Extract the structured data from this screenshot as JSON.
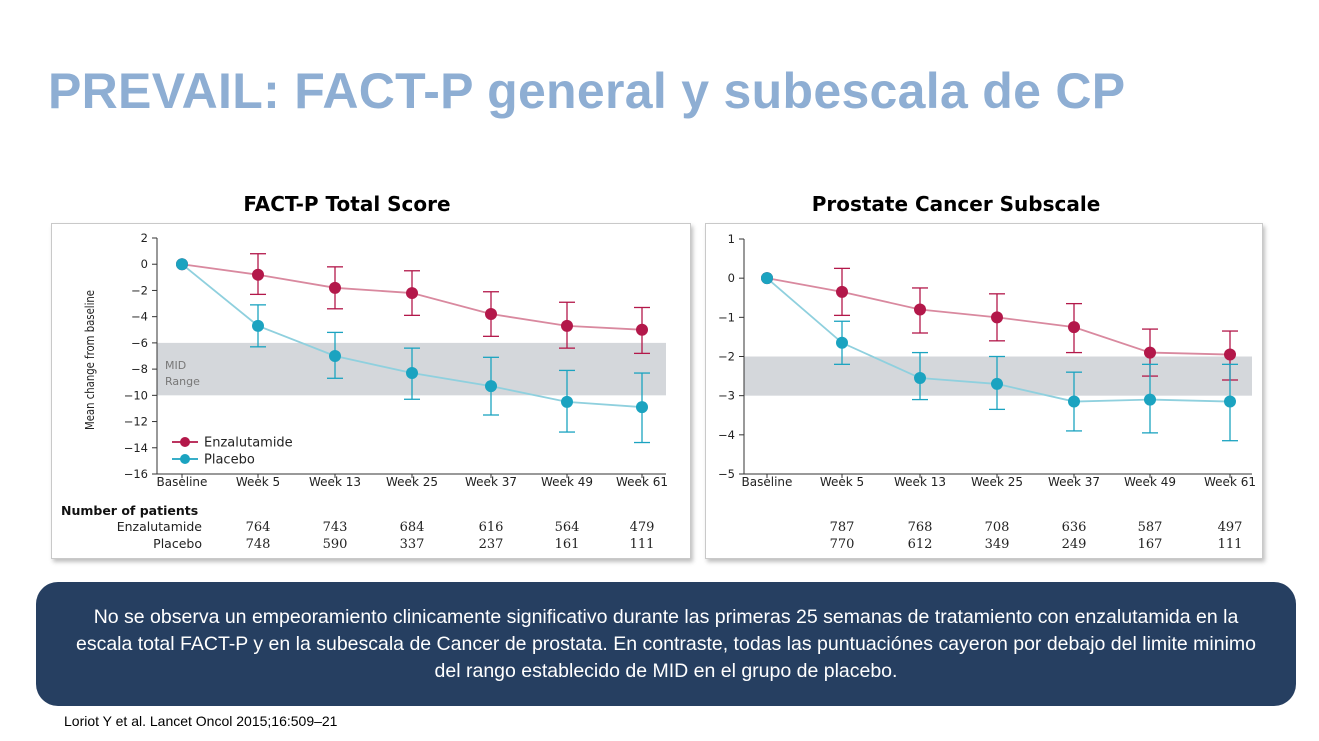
{
  "title": "PREVAIL: FACT-P general y subescala de CP",
  "summary": "No se observa un empeoramiento clinicamente significativo durante las primeras 25 semanas de tratamiento con enzalutamida en la escala total FACT-P y en la subescala de Cancer de prostata.  En contraste, todas las puntuaciónes cayeron por debajo del limite minimo del rango establecido de MID en el grupo de placebo.",
  "citation": "Loriot Y et al. Lancet Oncol 2015;16:509–21",
  "colors": {
    "enzalutamide": "#b3184a",
    "placebo": "#1ba3c0",
    "enzalutamide_line": "#d9899f",
    "placebo_line": "#8fd0de",
    "mid_band": "#d4d7db",
    "title": "#8eaed3",
    "summary_bg": "#263f61"
  },
  "chart_data": [
    {
      "type": "line",
      "title": "FACT-P Total Score",
      "ylabel": "Mean change from baseline",
      "ylim": [
        -16,
        2
      ],
      "yticks": [
        2,
        0,
        -2,
        -4,
        -6,
        -8,
        -10,
        -12,
        -14,
        -16
      ],
      "ytick_labels": [
        "2",
        "0",
        "−2",
        "−4",
        "−6",
        "−8",
        "−10",
        "−12",
        "−14",
        "−16"
      ],
      "categories": [
        "Baseline",
        "Week 5",
        "Week 13",
        "Week 25",
        "Week 37",
        "Week 49",
        "Week 61"
      ],
      "band": {
        "from": -10,
        "to": -6,
        "label_lines": [
          "MID",
          "Range"
        ]
      },
      "legend": {
        "position": "bottom-left",
        "entries": [
          "Enzalutamide",
          "Placebo"
        ]
      },
      "series": [
        {
          "name": "Enzalutamide",
          "values": [
            0,
            -0.8,
            -1.8,
            -2.2,
            -3.8,
            -4.7,
            -5.0
          ],
          "err_low": [
            null,
            -2.3,
            -3.4,
            -3.9,
            -5.5,
            -6.4,
            -6.8
          ],
          "err_high": [
            null,
            0.8,
            -0.2,
            -0.5,
            -2.1,
            -2.9,
            -3.3
          ]
        },
        {
          "name": "Placebo",
          "values": [
            0,
            -4.7,
            -7.0,
            -8.3,
            -9.3,
            -10.5,
            -10.9
          ],
          "err_low": [
            null,
            -6.3,
            -8.7,
            -10.3,
            -11.5,
            -12.8,
            -13.6
          ],
          "err_high": [
            null,
            -3.1,
            -5.2,
            -6.4,
            -7.1,
            -8.1,
            -8.3
          ]
        }
      ],
      "patients": {
        "header": "Number of patients",
        "rows": [
          {
            "label": "Enzalutamide",
            "counts": [
              "764",
              "743",
              "684",
              "616",
              "564",
              "479"
            ]
          },
          {
            "label": "Placebo",
            "counts": [
              "748",
              "590",
              "337",
              "237",
              "161",
              "111"
            ]
          }
        ]
      }
    },
    {
      "type": "line",
      "title": "Prostate Cancer Subscale",
      "ylim": [
        -5,
        1
      ],
      "yticks": [
        1,
        0,
        -1,
        -2,
        -3,
        -4,
        -5
      ],
      "ytick_labels": [
        "1",
        "0",
        "−1",
        "−2",
        "−3",
        "−4",
        "−5"
      ],
      "categories": [
        "Baseline",
        "Week 5",
        "Week 13",
        "Week 25",
        "Week 37",
        "Week 49",
        "Week 61"
      ],
      "band": {
        "from": -3,
        "to": -2
      },
      "series": [
        {
          "name": "Enzalutamide",
          "values": [
            0,
            -0.35,
            -0.8,
            -1.0,
            -1.25,
            -1.9,
            -1.95
          ],
          "err_low": [
            null,
            -0.95,
            -1.4,
            -1.6,
            -1.9,
            -2.5,
            -2.6
          ],
          "err_high": [
            null,
            0.25,
            -0.25,
            -0.4,
            -0.65,
            -1.3,
            -1.35
          ]
        },
        {
          "name": "Placebo",
          "values": [
            0,
            -1.65,
            -2.55,
            -2.7,
            -3.15,
            -3.1,
            -3.15
          ],
          "err_low": [
            null,
            -2.2,
            -3.1,
            -3.35,
            -3.9,
            -3.95,
            -4.15
          ],
          "err_high": [
            null,
            -1.1,
            -1.9,
            -2.0,
            -2.4,
            -2.2,
            -2.2
          ]
        }
      ],
      "patients": {
        "rows": [
          {
            "counts": [
              "787",
              "768",
              "708",
              "636",
              "587",
              "497"
            ]
          },
          {
            "counts": [
              "770",
              "612",
              "349",
              "249",
              "167",
              "111"
            ]
          }
        ]
      }
    }
  ]
}
